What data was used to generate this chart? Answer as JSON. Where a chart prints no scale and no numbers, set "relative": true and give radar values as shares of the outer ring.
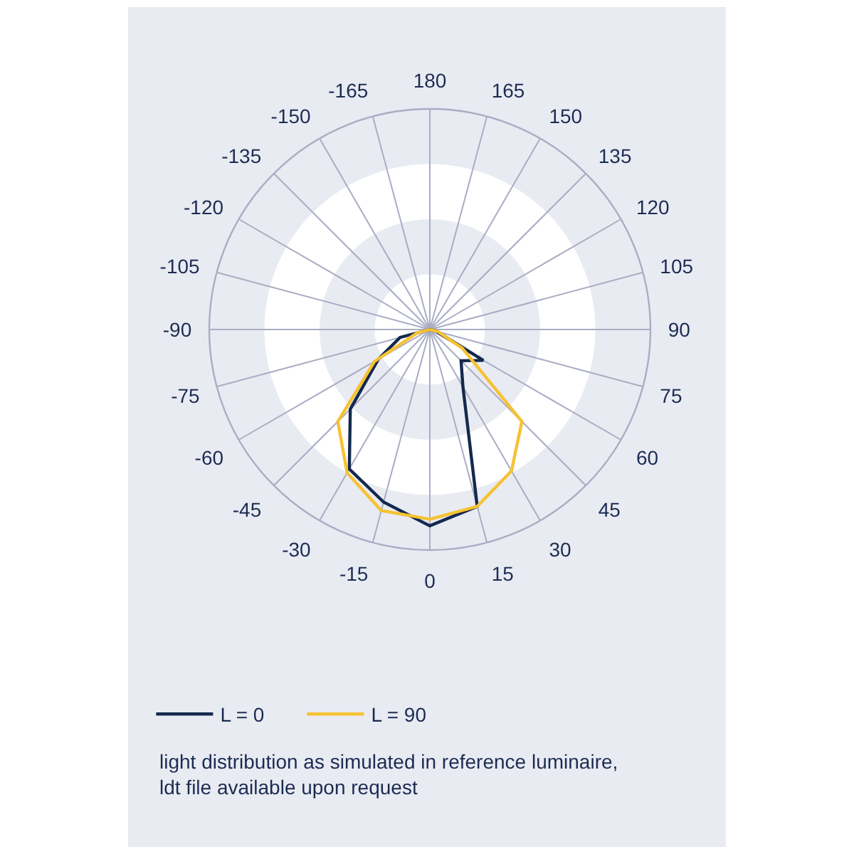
{
  "chart_data": {
    "type": "radar",
    "relative": true,
    "categories": [
      "180",
      "165",
      "150",
      "135",
      "120",
      "105",
      "90",
      "75",
      "60",
      "45",
      "30",
      "15",
      "0",
      "-15",
      "-30",
      "-45",
      "-60",
      "-75",
      "-90",
      "-105",
      "-120",
      "-135",
      "-150",
      "-165"
    ],
    "series": [
      {
        "name": "L = 0",
        "color": "#14294f",
        "values": [
          0,
          0,
          0,
          0,
          0,
          0,
          0,
          0.03,
          0.28,
          0.2,
          0.3,
          0.83,
          0.89,
          0.81,
          0.73,
          0.51,
          0.27,
          0.14,
          0,
          0,
          0,
          0,
          0,
          0
        ]
      },
      {
        "name": "L = 90",
        "color": "#f6c232",
        "values": [
          0,
          0,
          0,
          0,
          0,
          0,
          0,
          0.04,
          0.17,
          0.59,
          0.74,
          0.83,
          0.86,
          0.85,
          0.75,
          0.59,
          0.29,
          0.06,
          0,
          0,
          0,
          0,
          0,
          0
        ]
      }
    ],
    "grid": true,
    "legend": "bottom left",
    "annotations": [
      "light distribution as simulated in reference luminaire, ldt file available upon request"
    ]
  }
}
